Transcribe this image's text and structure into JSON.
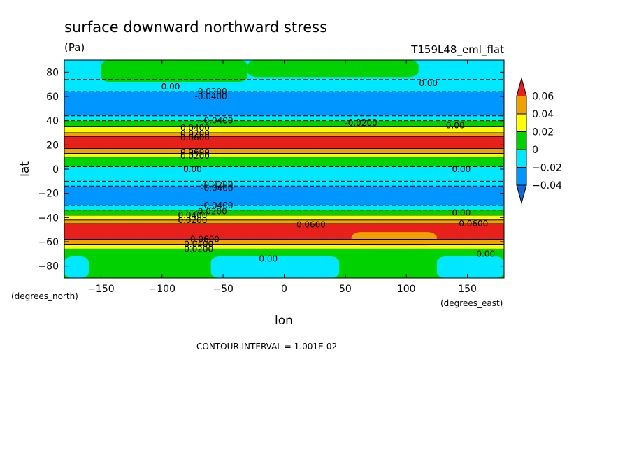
{
  "chart_data": {
    "type": "heatmap",
    "title": "surface downward northward stress",
    "units": "(Pa)",
    "experiment": "T159L48_eml_flat",
    "xlabel": "lon",
    "ylabel": "lat",
    "x_units": "(degrees_east)",
    "y_units": "(degrees_north)",
    "xlim": [
      -180,
      180
    ],
    "ylim": [
      -90,
      90
    ],
    "xticks": [
      -150,
      -100,
      -50,
      0,
      50,
      100,
      150
    ],
    "yticks": [
      -80,
      -60,
      -40,
      -20,
      0,
      20,
      40,
      60,
      80
    ],
    "contour_interval_label": "CONTOUR INTERVAL = 1.001E-02",
    "colorbar": {
      "levels": [
        0.06,
        0.04,
        0.02,
        0,
        -0.02,
        -0.04
      ],
      "labels": [
        "0.06",
        "0.04",
        "0.02",
        "0",
        "−0.02",
        "−0.04"
      ],
      "colors": [
        "#e8201c",
        "#f0a000",
        "#ffff00",
        "#00d200",
        "#00e8ff",
        "#0096ff",
        "#1464d2"
      ]
    },
    "lat_bands": [
      {
        "lat_from": 90,
        "lat_to": 74,
        "value": 0.0,
        "color": "#00e8ff"
      },
      {
        "lat_from": 74,
        "lat_to": 64,
        "value": -0.01,
        "color": "#00e8ff"
      },
      {
        "lat_from": 64,
        "lat_to": 44,
        "value": -0.03,
        "color": "#0096ff"
      },
      {
        "lat_from": 44,
        "lat_to": 40,
        "value": -0.01,
        "color": "#00e8ff"
      },
      {
        "lat_from": 40,
        "lat_to": 35,
        "value": 0.01,
        "color": "#00d200"
      },
      {
        "lat_from": 35,
        "lat_to": 30,
        "value": 0.03,
        "color": "#ffff00"
      },
      {
        "lat_from": 30,
        "lat_to": 27,
        "value": 0.05,
        "color": "#f0a000"
      },
      {
        "lat_from": 27,
        "lat_to": 17,
        "value": 0.065,
        "color": "#e8201c"
      },
      {
        "lat_from": 17,
        "lat_to": 13,
        "value": 0.05,
        "color": "#f0a000"
      },
      {
        "lat_from": 13,
        "lat_to": 10,
        "value": 0.03,
        "color": "#ffff00"
      },
      {
        "lat_from": 10,
        "lat_to": 2,
        "value": 0.01,
        "color": "#00d200"
      },
      {
        "lat_from": 2,
        "lat_to": -10,
        "value": -0.01,
        "color": "#00e8ff"
      },
      {
        "lat_from": -10,
        "lat_to": -14,
        "value": -0.01,
        "color": "#00e8ff"
      },
      {
        "lat_from": -14,
        "lat_to": -30,
        "value": -0.03,
        "color": "#0096ff"
      },
      {
        "lat_from": -30,
        "lat_to": -34,
        "value": -0.01,
        "color": "#00e8ff"
      },
      {
        "lat_from": -34,
        "lat_to": -38,
        "value": 0.01,
        "color": "#00d200"
      },
      {
        "lat_from": -38,
        "lat_to": -42,
        "value": 0.03,
        "color": "#ffff00"
      },
      {
        "lat_from": -42,
        "lat_to": -45,
        "value": 0.05,
        "color": "#f0a000"
      },
      {
        "lat_from": -45,
        "lat_to": -58,
        "value": 0.065,
        "color": "#e8201c"
      },
      {
        "lat_from": -58,
        "lat_to": -62,
        "value": 0.05,
        "color": "#f0a000"
      },
      {
        "lat_from": -62,
        "lat_to": -66,
        "value": 0.03,
        "color": "#ffff00"
      },
      {
        "lat_from": -66,
        "lat_to": -90,
        "value": 0.01,
        "color": "#00d200"
      }
    ],
    "regions": [
      {
        "lon_from": -150,
        "lon_to": -30,
        "lat_from": 90,
        "lat_to": 72,
        "value": 0.01,
        "color": "#00d200"
      },
      {
        "lon_from": -30,
        "lon_to": 110,
        "lat_from": 90,
        "lat_to": 76,
        "value": 0.01,
        "color": "#00d200"
      },
      {
        "lon_from": 55,
        "lon_to": 125,
        "lat_from": -52,
        "lat_to": -63,
        "value": 0.05,
        "color": "#f0a000"
      },
      {
        "lon_from": -60,
        "lon_to": 45,
        "lat_from": -72,
        "lat_to": -90,
        "value": -0.01,
        "color": "#00e8ff"
      },
      {
        "lon_from": 125,
        "lon_to": 180,
        "lat_from": -72,
        "lat_to": -90,
        "value": -0.01,
        "color": "#00e8ff"
      },
      {
        "lon_from": -180,
        "lon_to": -160,
        "lat_from": -72,
        "lat_to": -90,
        "value": -0.01,
        "color": "#00e8ff"
      }
    ],
    "contour_labels": [
      {
        "lon": -93,
        "lat": 68,
        "text": "0.00"
      },
      {
        "lon": -60,
        "lat": 64,
        "text": "-0.0200"
      },
      {
        "lon": -60,
        "lat": 60,
        "text": "-0.0400"
      },
      {
        "lon": 118,
        "lat": 71,
        "text": "0.00"
      },
      {
        "lon": -55,
        "lat": 40,
        "text": "-0.0400"
      },
      {
        "lon": 63,
        "lat": 38,
        "text": "-0.0200"
      },
      {
        "lon": 140,
        "lat": 36,
        "text": "0.00"
      },
      {
        "lon": -73,
        "lat": 34,
        "text": "0.0400"
      },
      {
        "lon": -73,
        "lat": 29,
        "text": "0.0200"
      },
      {
        "lon": -73,
        "lat": 26,
        "text": "0.0600"
      },
      {
        "lon": -73,
        "lat": 14,
        "text": "0.0600"
      },
      {
        "lon": -73,
        "lat": 11,
        "text": "0.0200"
      },
      {
        "lon": -75,
        "lat": 0,
        "text": "0.00"
      },
      {
        "lon": 145,
        "lat": 0,
        "text": "0.00"
      },
      {
        "lon": -55,
        "lat": -13,
        "text": "-0.0200"
      },
      {
        "lon": -55,
        "lat": -16,
        "text": "-0.0400"
      },
      {
        "lon": -55,
        "lat": -30,
        "text": "-0.0400"
      },
      {
        "lon": -60,
        "lat": -35,
        "text": "-0.0200"
      },
      {
        "lon": 145,
        "lat": -36,
        "text": "0.00"
      },
      {
        "lon": -75,
        "lat": -38,
        "text": "0.0400"
      },
      {
        "lon": -75,
        "lat": -42,
        "text": "0.0200"
      },
      {
        "lon": 22,
        "lat": -46,
        "text": "0.0600"
      },
      {
        "lon": 155,
        "lat": -45,
        "text": "0.0600"
      },
      {
        "lon": -65,
        "lat": -58,
        "text": "0.0600"
      },
      {
        "lon": -70,
        "lat": -62,
        "text": "0.0400"
      },
      {
        "lon": -70,
        "lat": -66,
        "text": "0.0200"
      },
      {
        "lon": -13,
        "lat": -74,
        "text": "0.00"
      },
      {
        "lon": 165,
        "lat": -70,
        "text": "0.00"
      }
    ]
  }
}
